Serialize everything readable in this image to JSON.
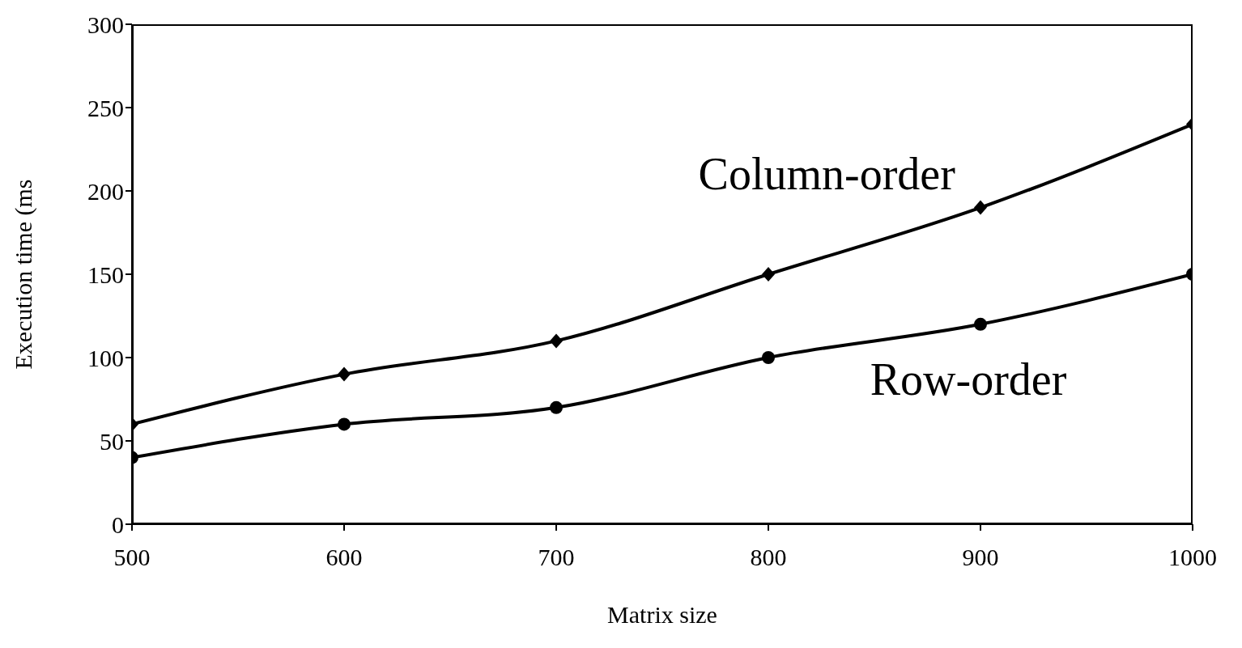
{
  "chart_data": {
    "type": "line",
    "xlabel": "Matrix size",
    "ylabel": "Execution time (ms",
    "x": [
      500,
      600,
      700,
      800,
      900,
      1000
    ],
    "series": [
      {
        "name": "Column-order",
        "color": "#000000",
        "marker": "diamond",
        "values": [
          60,
          90,
          110,
          150,
          190,
          240
        ]
      },
      {
        "name": "Row-order",
        "color": "#000000",
        "marker": "circle",
        "values": [
          40,
          60,
          70,
          100,
          120,
          150
        ]
      }
    ],
    "xlim": [
      500,
      1000
    ],
    "xticks": [
      500,
      600,
      700,
      800,
      900,
      1000
    ],
    "ylim": [
      0,
      300
    ],
    "yticks": [
      0,
      50,
      100,
      150,
      200,
      250,
      300
    ],
    "line_style": "solid"
  }
}
